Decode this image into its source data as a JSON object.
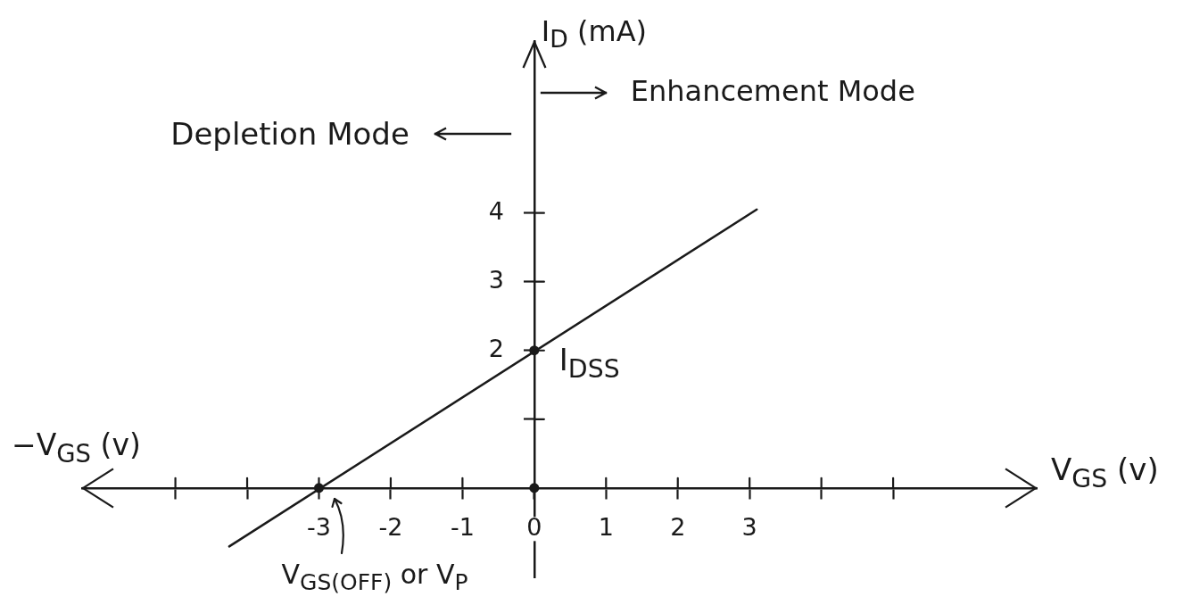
{
  "chart_data": {
    "type": "line",
    "xlabel": "V$_{GS}$ (v)",
    "ylabel": "I$_{D}$ (mA)",
    "series": [
      {
        "color": "#1a1a1a",
        "x": [
          -4.25,
          3.1
        ],
        "values": [
          -0.85,
          4.05
        ]
      },
      {
        "type": "scatter",
        "color": "#1a1a1a",
        "marker": "circle",
        "x": [
          -3,
          0,
          0
        ],
        "values": [
          0,
          0,
          2
        ]
      }
    ],
    "xlim": [
      -6.3,
      7
    ],
    "ylim": [
      -1.3,
      6.5
    ],
    "xticks": [
      {
        "value": -5,
        "label": null
      },
      {
        "value": -4,
        "label": null
      },
      -3,
      -2,
      -1,
      0,
      1,
      2,
      3,
      {
        "value": 4,
        "label": null
      },
      {
        "value": 5,
        "label": null
      }
    ],
    "yticks": [
      {
        "value": 1,
        "label": null
      },
      2,
      3,
      4
    ],
    "annotations": [
      "Enhancement Mode",
      "Depletion Mode",
      "−V$_{GS}$ (v)",
      {
        "text": "I$_{DSS}$",
        "x": 0,
        "y": 2
      },
      {
        "text": "V$_{GS(OFF)}$ or V$_{P}$",
        "x": -3,
        "y": 0
      }
    ]
  }
}
